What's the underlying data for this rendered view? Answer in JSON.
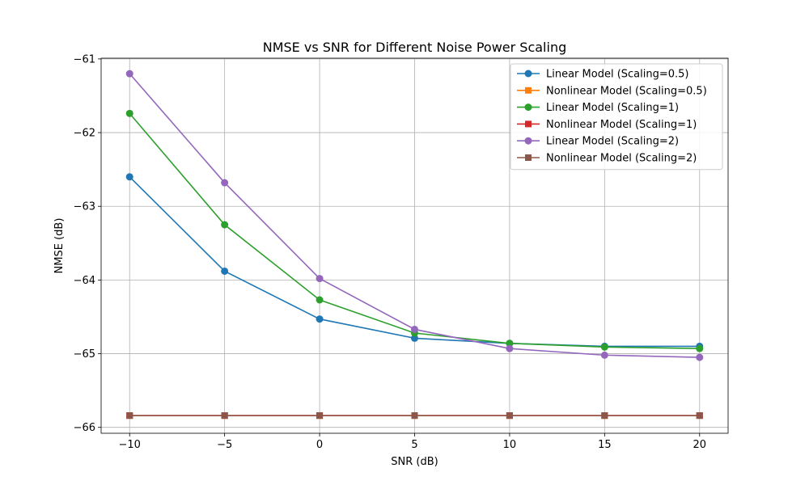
{
  "chart_data": {
    "type": "line",
    "title": "NMSE vs SNR for Different Noise Power Scaling",
    "xlabel": "SNR (dB)",
    "ylabel": "NMSE (dB)",
    "x": [
      -10,
      -5,
      0,
      5,
      10,
      15,
      20
    ],
    "xlim": [
      -11.5,
      21.5
    ],
    "ylim": [
      -66.08,
      -60.99
    ],
    "xticks": [
      -10,
      -5,
      0,
      5,
      10,
      15,
      20
    ],
    "xtick_labels": [
      "−10",
      "−5",
      "0",
      "5",
      "10",
      "15",
      "20"
    ],
    "yticks": [
      -66,
      -65,
      -64,
      -63,
      -62,
      -61
    ],
    "ytick_labels": [
      "−66",
      "−65",
      "−64",
      "−63",
      "−62",
      "−61"
    ],
    "grid": true,
    "legend_position": "top-right",
    "series": [
      {
        "name": "Linear Model (Scaling=0.5)",
        "color": "#1f77b4",
        "marker": "circle",
        "values": [
          -62.6,
          -63.88,
          -64.53,
          -64.79,
          -64.86,
          -64.9,
          -64.9
        ]
      },
      {
        "name": "Nonlinear Model (Scaling=0.5)",
        "color": "#ff7f0e",
        "marker": "square",
        "values": [
          -65.84,
          -65.84,
          -65.84,
          -65.84,
          -65.84,
          -65.84,
          -65.84
        ]
      },
      {
        "name": "Linear Model (Scaling=1)",
        "color": "#2ca02c",
        "marker": "circle",
        "values": [
          -61.74,
          -63.25,
          -64.27,
          -64.72,
          -64.86,
          -64.91,
          -64.93
        ]
      },
      {
        "name": "Nonlinear Model (Scaling=1)",
        "color": "#d62728",
        "marker": "square",
        "values": [
          -65.84,
          -65.84,
          -65.84,
          -65.84,
          -65.84,
          -65.84,
          -65.84
        ]
      },
      {
        "name": "Linear Model (Scaling=2)",
        "color": "#9467bd",
        "marker": "circle",
        "values": [
          -61.2,
          -62.68,
          -63.98,
          -64.67,
          -64.93,
          -65.02,
          -65.05
        ]
      },
      {
        "name": "Nonlinear Model (Scaling=2)",
        "color": "#8c564b",
        "marker": "square",
        "values": [
          -65.84,
          -65.84,
          -65.84,
          -65.84,
          -65.84,
          -65.84,
          -65.84
        ]
      }
    ]
  }
}
